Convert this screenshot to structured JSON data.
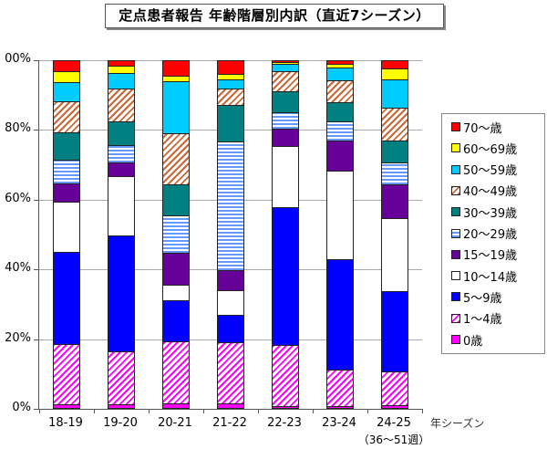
{
  "title": "定点患者報告 年齢階層別内訳（直近7シーズン）",
  "chart_data": {
    "type": "bar",
    "stacked": true,
    "percent": true,
    "title": "定点患者報告 年齢階層別内訳（直近7シーズン）",
    "xlabel": "年シーズン",
    "ylabel": "",
    "ylim": [
      0,
      100
    ],
    "yticks": [
      "0%",
      "20%",
      "40%",
      "60%",
      "80%",
      "00%"
    ],
    "grid": true,
    "legend_position": "right",
    "categories": [
      "18-19",
      "19-20",
      "20-21",
      "21-22",
      "22-23",
      "23-24",
      "24-25"
    ],
    "category_notes": {
      "24-25": "（36～51週）"
    },
    "series": [
      {
        "name": "0歳",
        "color": "#ff00ff",
        "pattern": "solid",
        "values": [
          1.3,
          1.3,
          1.6,
          1.6,
          0.8,
          0.8,
          1.0
        ]
      },
      {
        "name": "1～4歳",
        "color": "#ff00ff",
        "pattern": "diagonal",
        "values": [
          17.3,
          15.2,
          17.8,
          17.5,
          17.5,
          10.5,
          9.7
        ]
      },
      {
        "name": "5～9歳",
        "color": "#0000ff",
        "pattern": "solid",
        "values": [
          26.4,
          33.2,
          11.8,
          7.9,
          39.5,
          31.7,
          23.0
        ]
      },
      {
        "name": "10～14歳",
        "color": "#ffffff",
        "pattern": "solid",
        "values": [
          14.4,
          17.0,
          4.5,
          7.1,
          17.5,
          25.4,
          20.9
        ]
      },
      {
        "name": "15～19歳",
        "color": "#660099",
        "pattern": "solid",
        "values": [
          5.2,
          3.9,
          9.2,
          5.8,
          5.0,
          8.6,
          9.7
        ]
      },
      {
        "name": "20～29歳",
        "color": "#6699ff",
        "pattern": "horizontal",
        "values": [
          6.8,
          5.0,
          10.5,
          36.9,
          4.7,
          5.5,
          6.5
        ]
      },
      {
        "name": "30～39歳",
        "color": "#008080",
        "pattern": "solid",
        "values": [
          7.9,
          6.8,
          8.9,
          10.5,
          6.0,
          5.5,
          6.3
        ]
      },
      {
        "name": "40～49歳",
        "color": "#cc6633",
        "pattern": "diagonal",
        "values": [
          8.9,
          9.4,
          14.9,
          4.7,
          6.0,
          6.3,
          9.4
        ]
      },
      {
        "name": "50～59歳",
        "color": "#00ccff",
        "pattern": "solid",
        "values": [
          5.5,
          4.5,
          14.9,
          2.4,
          2.1,
          3.7,
          8.1
        ]
      },
      {
        "name": "60～69歳",
        "color": "#ffff00",
        "pattern": "solid",
        "values": [
          3.1,
          2.1,
          1.6,
          1.6,
          0.5,
          1.0,
          3.1
        ]
      },
      {
        "name": "70～歳",
        "color": "#ff0000",
        "pattern": "solid",
        "values": [
          3.2,
          1.6,
          4.3,
          4.0,
          0.4,
          1.0,
          2.3
        ]
      }
    ]
  }
}
